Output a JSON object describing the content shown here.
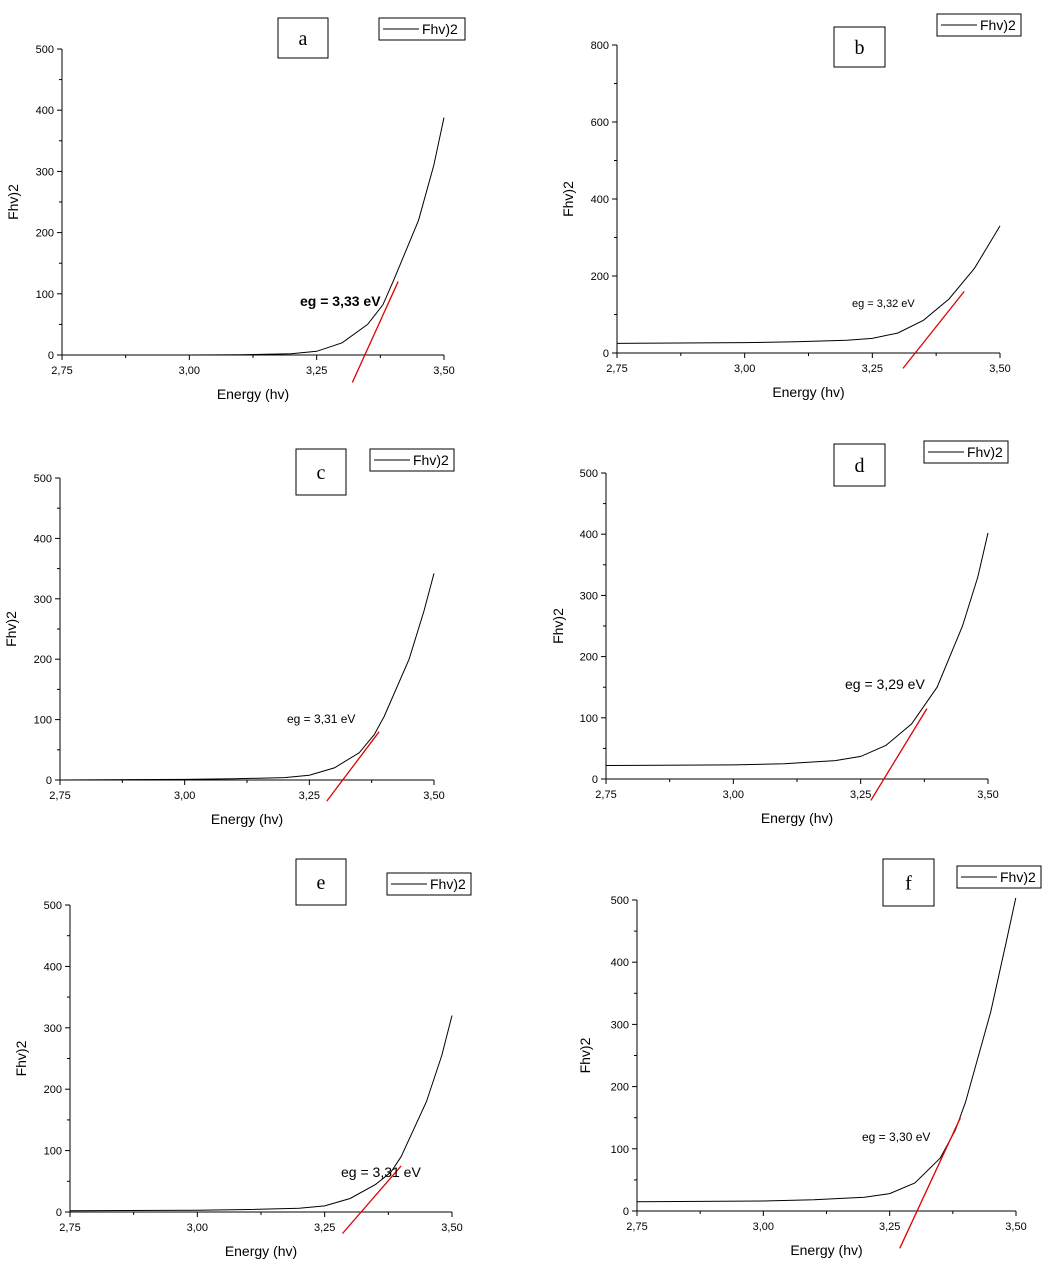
{
  "chart_data": [
    {
      "type": "line",
      "panel_label": "a",
      "xlabel": "Energy (hv)",
      "ylabel": "Fhv)2",
      "legend": "Fhv)2",
      "annotation": "eg = 3,33 eV",
      "xlim": [
        2.75,
        3.5
      ],
      "ylim": [
        0,
        500
      ],
      "x_ticks": [
        "2,75",
        "3,00",
        "3,25",
        "3,50"
      ],
      "y_ticks": [
        "0",
        "100",
        "200",
        "300",
        "400",
        "500"
      ],
      "y_tick_values": [
        0,
        100,
        200,
        300,
        400,
        500
      ],
      "x": [
        2.75,
        3.0,
        3.1,
        3.2,
        3.25,
        3.3,
        3.35,
        3.38,
        3.4,
        3.45,
        3.48,
        3.5
      ],
      "y": [
        0,
        0,
        0.5,
        2,
        6,
        20,
        50,
        82,
        120,
        220,
        310,
        388
      ],
      "fit_line": {
        "x": [
          3.32,
          3.41
        ],
        "y": [
          -45,
          120
        ]
      }
    },
    {
      "type": "line",
      "panel_label": "b",
      "xlabel": "Energy (hv)",
      "ylabel": "Fhv)2",
      "legend": "Fhv)2",
      "annotation": "eg = 3,32 eV",
      "xlim": [
        2.75,
        3.5
      ],
      "ylim": [
        0,
        800
      ],
      "x_ticks": [
        "2,75",
        "3,00",
        "3,25",
        "3,50"
      ],
      "y_ticks": [
        "0",
        "200",
        "400",
        "600",
        "800"
      ],
      "y_tick_values": [
        0,
        200,
        400,
        600,
        800
      ],
      "x": [
        2.75,
        3.0,
        3.1,
        3.2,
        3.25,
        3.3,
        3.35,
        3.4,
        3.45,
        3.5
      ],
      "y": [
        25,
        27,
        29,
        33,
        38,
        52,
        85,
        140,
        220,
        330
      ],
      "fit_line": {
        "x": [
          3.31,
          3.43
        ],
        "y": [
          -40,
          160
        ]
      }
    },
    {
      "type": "line",
      "panel_label": "c",
      "xlabel": "Energy (hv)",
      "ylabel": "Fhv)2",
      "legend": "Fhv)2",
      "annotation": "eg = 3,31 eV",
      "xlim": [
        2.75,
        3.5
      ],
      "ylim": [
        0,
        500
      ],
      "x_ticks": [
        "2,75",
        "3,00",
        "3,25",
        "3,50"
      ],
      "y_ticks": [
        "0",
        "100",
        "200",
        "300",
        "400",
        "500"
      ],
      "y_tick_values": [
        0,
        100,
        200,
        300,
        400,
        500
      ],
      "x": [
        2.75,
        3.0,
        3.1,
        3.2,
        3.25,
        3.3,
        3.35,
        3.38,
        3.4,
        3.45,
        3.48,
        3.5
      ],
      "y": [
        0,
        1,
        2,
        4,
        8,
        20,
        45,
        75,
        105,
        200,
        280,
        342
      ],
      "fit_line": {
        "x": [
          3.285,
          3.39
        ],
        "y": [
          -35,
          80
        ]
      }
    },
    {
      "type": "line",
      "panel_label": "d",
      "xlabel": "Energy (hv)",
      "ylabel": "Fhv)2",
      "legend": "Fhv)2",
      "annotation": "eg = 3,29 eV",
      "xlim": [
        2.75,
        3.5
      ],
      "ylim": [
        0,
        500
      ],
      "x_ticks": [
        "2,75",
        "3,00",
        "3,25",
        "3,50"
      ],
      "y_ticks": [
        "0",
        "100",
        "200",
        "300",
        "400",
        "500"
      ],
      "y_tick_values": [
        0,
        100,
        200,
        300,
        400,
        500
      ],
      "x": [
        2.75,
        3.0,
        3.1,
        3.2,
        3.25,
        3.3,
        3.35,
        3.4,
        3.45,
        3.48,
        3.5
      ],
      "y": [
        22,
        23,
        25,
        30,
        37,
        55,
        90,
        150,
        250,
        330,
        402
      ],
      "fit_line": {
        "x": [
          3.27,
          3.38
        ],
        "y": [
          -35,
          115
        ]
      }
    },
    {
      "type": "line",
      "panel_label": "e",
      "xlabel": "Energy (hv)",
      "ylabel": "Fhv)2",
      "legend": "Fhv)2",
      "annotation": "eg = 3,31 eV",
      "xlim": [
        2.75,
        3.5
      ],
      "ylim": [
        0,
        500
      ],
      "x_ticks": [
        "2,75",
        "3,00",
        "3,25",
        "3,50"
      ],
      "y_ticks": [
        "0",
        "100",
        "200",
        "300",
        "400",
        "500"
      ],
      "y_tick_values": [
        0,
        100,
        200,
        300,
        400,
        500
      ],
      "x": [
        2.75,
        3.0,
        3.1,
        3.2,
        3.25,
        3.3,
        3.35,
        3.38,
        3.4,
        3.45,
        3.48,
        3.5
      ],
      "y": [
        2,
        3,
        4,
        6,
        10,
        22,
        45,
        65,
        90,
        180,
        255,
        320
      ],
      "fit_line": {
        "x": [
          3.285,
          3.4
        ],
        "y": [
          -35,
          75
        ]
      }
    },
    {
      "type": "line",
      "panel_label": "f",
      "xlabel": "Energy (hv)",
      "ylabel": "Fhv)2",
      "legend": "Fhv)2",
      "annotation": "eg = 3,30 eV",
      "xlim": [
        2.75,
        3.5
      ],
      "ylim": [
        0,
        500
      ],
      "x_ticks": [
        "2,75",
        "3,00",
        "3,25",
        "3,50"
      ],
      "y_ticks": [
        "0",
        "100",
        "200",
        "300",
        "400",
        "500"
      ],
      "y_tick_values": [
        0,
        100,
        200,
        300,
        400,
        500
      ],
      "x": [
        2.75,
        3.0,
        3.1,
        3.2,
        3.25,
        3.3,
        3.35,
        3.38,
        3.4,
        3.45,
        3.48,
        3.5
      ],
      "y": [
        15,
        16,
        18,
        22,
        28,
        45,
        85,
        130,
        175,
        320,
        430,
        505
      ],
      "fit_line": {
        "x": [
          3.27,
          3.39
        ],
        "y": [
          -60,
          150
        ]
      }
    }
  ]
}
